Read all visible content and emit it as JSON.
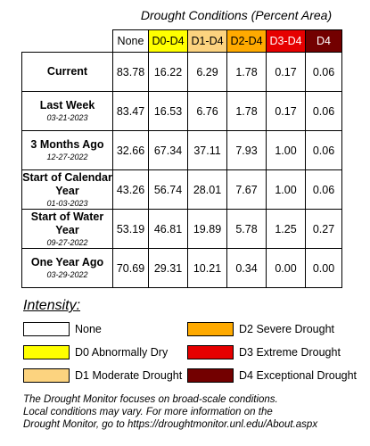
{
  "colors": {
    "None": "#ffffff",
    "D0-D4": "#ffff00",
    "D1-D4": "#fcd37f",
    "D2-D4": "#ffaa00",
    "D3-D4": "#e60000",
    "D4": "#730000"
  },
  "chart_data": {
    "type": "table",
    "title": "Drought Conditions (Percent Area)",
    "columns": [
      "None",
      "D0-D4",
      "D1-D4",
      "D2-D4",
      "D3-D4",
      "D4"
    ],
    "rows": [
      {
        "label": "Current",
        "date": "",
        "values": [
          "83.78",
          "16.22",
          "6.29",
          "1.78",
          "0.17",
          "0.06"
        ]
      },
      {
        "label": "Last Week",
        "date": "03-21-2023",
        "values": [
          "83.47",
          "16.53",
          "6.76",
          "1.78",
          "0.17",
          "0.06"
        ]
      },
      {
        "label": "3 Months Ago",
        "date": "12-27-2022",
        "values": [
          "32.66",
          "67.34",
          "37.11",
          "7.93",
          "1.00",
          "0.06"
        ]
      },
      {
        "label": "Start of Calendar Year",
        "date": "01-03-2023",
        "values": [
          "43.26",
          "56.74",
          "28.01",
          "7.67",
          "1.00",
          "0.06"
        ]
      },
      {
        "label": "Start of Water Year",
        "date": "09-27-2022",
        "values": [
          "53.19",
          "46.81",
          "19.89",
          "5.78",
          "1.25",
          "0.27"
        ]
      },
      {
        "label": "One Year Ago",
        "date": "03-29-2022",
        "values": [
          "70.69",
          "29.31",
          "10.21",
          "0.34",
          "0.00",
          "0.00"
        ]
      }
    ]
  },
  "legend": {
    "heading": "Intensity:",
    "items": [
      {
        "label": "None",
        "color": "#ffffff"
      },
      {
        "label": "D0 Abnormally Dry",
        "color": "#ffff00"
      },
      {
        "label": "D1 Moderate Drought",
        "color": "#fcd37f"
      },
      {
        "label": "D2 Severe Drought",
        "color": "#ffaa00"
      },
      {
        "label": "D3 Extreme Drought",
        "color": "#e60000"
      },
      {
        "label": "D4 Exceptional Drought",
        "color": "#730000"
      }
    ]
  },
  "footnote": {
    "lines": [
      "The Drought Monitor focuses on broad-scale conditions.",
      "Local conditions may vary. For more information on the",
      "Drought Monitor, go to https://droughtmonitor.unl.edu/About.aspx"
    ]
  }
}
